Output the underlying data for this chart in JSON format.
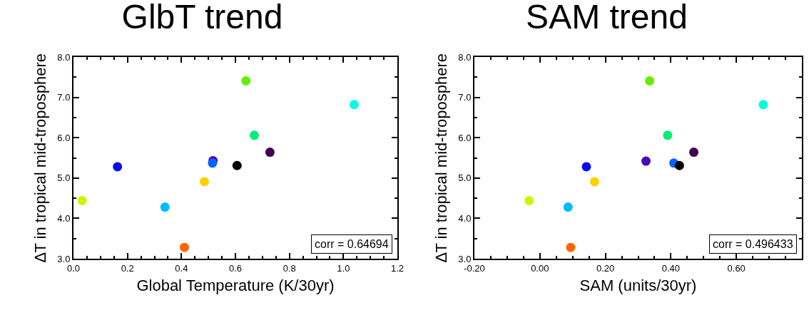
{
  "chart_data": [
    {
      "type": "scatter",
      "title": "GlbT trend",
      "xlabel": "Global Temperature (K/30yr)",
      "ylabel": "∆T in tropical mid-troposphere",
      "marker": "circle",
      "grid": false,
      "xlim": [
        0,
        1.2
      ],
      "xticks": [
        {
          "value": 0,
          "label": "0.0"
        },
        {
          "value": 0.2,
          "label": "0.2"
        },
        {
          "value": 0.4,
          "label": "0.4"
        },
        {
          "value": 0.6,
          "label": "0.6"
        },
        {
          "value": 0.8,
          "label": "0.8"
        },
        {
          "value": 1.0,
          "label": "1.0"
        },
        {
          "value": 1.2,
          "label": "1.2"
        }
      ],
      "ylim": [
        3,
        8
      ],
      "yticks": [
        {
          "value": 3,
          "label": "3.0"
        },
        {
          "value": 4,
          "label": "4.0"
        },
        {
          "value": 5,
          "label": "5.0"
        },
        {
          "value": 6,
          "label": "6.0"
        },
        {
          "value": 7,
          "label": "7.0"
        },
        {
          "value": 8,
          "label": "8.0"
        }
      ],
      "x": [
        0.032,
        0.163,
        0.339,
        0.411,
        0.485,
        0.517,
        0.515,
        0.606,
        0.639,
        0.67,
        0.728,
        1.04
      ],
      "values": [
        4.44,
        5.28,
        4.28,
        3.28,
        4.91,
        5.43,
        5.37,
        5.31,
        7.41,
        6.06,
        5.64,
        6.82
      ],
      "colors": [
        "#ccf500",
        "#0a0aee",
        "#00bbff",
        "#ff6600",
        "#ffd000",
        "#4b0ab4",
        "#0064ff",
        "#000000",
        "#66ee00",
        "#00ee77",
        "#400050",
        "#00ffdd"
      ],
      "annotations": [
        "corr = 0.64694"
      ]
    },
    {
      "type": "scatter",
      "title": "SAM trend",
      "xlabel": "SAM (units/30yr)",
      "ylabel": "∆T in tropical mid-troposphere",
      "marker": "circle",
      "grid": false,
      "xlim": [
        -0.2,
        0.8
      ],
      "xticks": [
        {
          "value": -0.2,
          "label": "-0.20"
        },
        {
          "value": 0,
          "label": "0.00"
        },
        {
          "value": 0.2,
          "label": "0.20"
        },
        {
          "value": 0.4,
          "label": "0.40"
        },
        {
          "value": 0.6,
          "label": "0.60"
        }
      ],
      "ylim": [
        3,
        8
      ],
      "yticks": [
        {
          "value": 3,
          "label": "3.0"
        },
        {
          "value": 4,
          "label": "4.0"
        },
        {
          "value": 5,
          "label": "5.0"
        },
        {
          "value": 6,
          "label": "6.0"
        },
        {
          "value": 7,
          "label": "7.0"
        },
        {
          "value": 8,
          "label": "8.0"
        }
      ],
      "x": [
        -0.033,
        0.142,
        0.086,
        0.094,
        0.167,
        0.324,
        0.409,
        0.426,
        0.335,
        0.39,
        0.47,
        0.682
      ],
      "values": [
        4.44,
        5.28,
        4.28,
        3.28,
        4.91,
        5.42,
        5.37,
        5.31,
        7.41,
        6.06,
        5.64,
        6.82
      ],
      "colors": [
        "#ccf500",
        "#0a0aee",
        "#00bbff",
        "#ff6600",
        "#ffd000",
        "#4b0ab4",
        "#0064ff",
        "#000000",
        "#66ee00",
        "#00ee77",
        "#400050",
        "#00ffdd"
      ],
      "annotations": [
        "corr = 0.496433"
      ]
    }
  ]
}
